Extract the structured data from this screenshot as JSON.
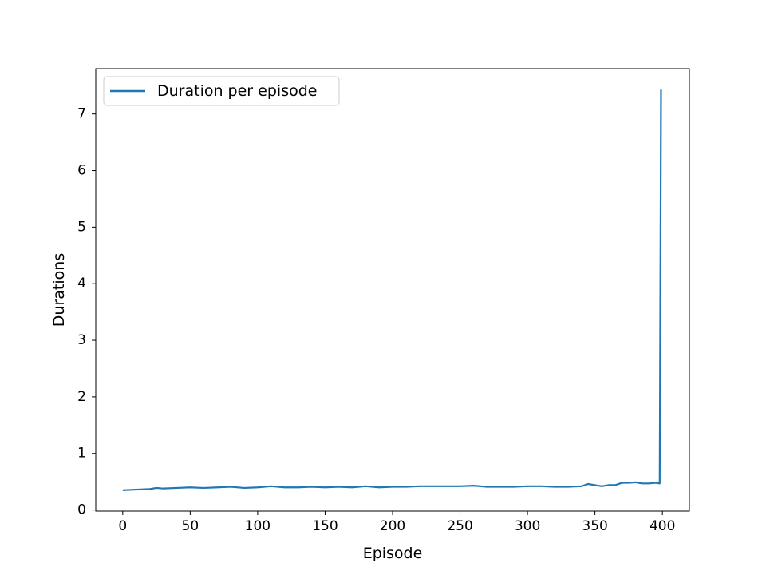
{
  "chart_data": {
    "type": "line",
    "title": "",
    "xlabel": "Episode",
    "ylabel": "Durations",
    "xlim": [
      -20,
      420
    ],
    "ylim": [
      -0.02,
      7.8
    ],
    "xticks": [
      0,
      50,
      100,
      150,
      200,
      250,
      300,
      350,
      400
    ],
    "yticks": [
      0,
      1,
      2,
      3,
      4,
      5,
      6,
      7
    ],
    "grid": false,
    "legend_position": "upper-left",
    "series": [
      {
        "name": "Duration per episode",
        "color": "#1f77b4",
        "x": [
          0,
          10,
          20,
          25,
          30,
          40,
          50,
          60,
          70,
          80,
          90,
          100,
          110,
          120,
          130,
          140,
          150,
          160,
          170,
          180,
          190,
          200,
          210,
          220,
          230,
          240,
          250,
          260,
          270,
          280,
          290,
          300,
          310,
          320,
          330,
          340,
          345,
          350,
          355,
          360,
          365,
          370,
          375,
          380,
          385,
          390,
          395,
          398,
          399
        ],
        "y": [
          0.35,
          0.36,
          0.37,
          0.39,
          0.38,
          0.39,
          0.4,
          0.39,
          0.4,
          0.41,
          0.39,
          0.4,
          0.42,
          0.4,
          0.4,
          0.41,
          0.4,
          0.41,
          0.4,
          0.42,
          0.4,
          0.41,
          0.41,
          0.42,
          0.42,
          0.42,
          0.42,
          0.43,
          0.41,
          0.41,
          0.41,
          0.42,
          0.42,
          0.41,
          0.41,
          0.42,
          0.46,
          0.44,
          0.42,
          0.44,
          0.44,
          0.48,
          0.48,
          0.49,
          0.47,
          0.47,
          0.48,
          0.47,
          7.43
        ]
      }
    ]
  }
}
